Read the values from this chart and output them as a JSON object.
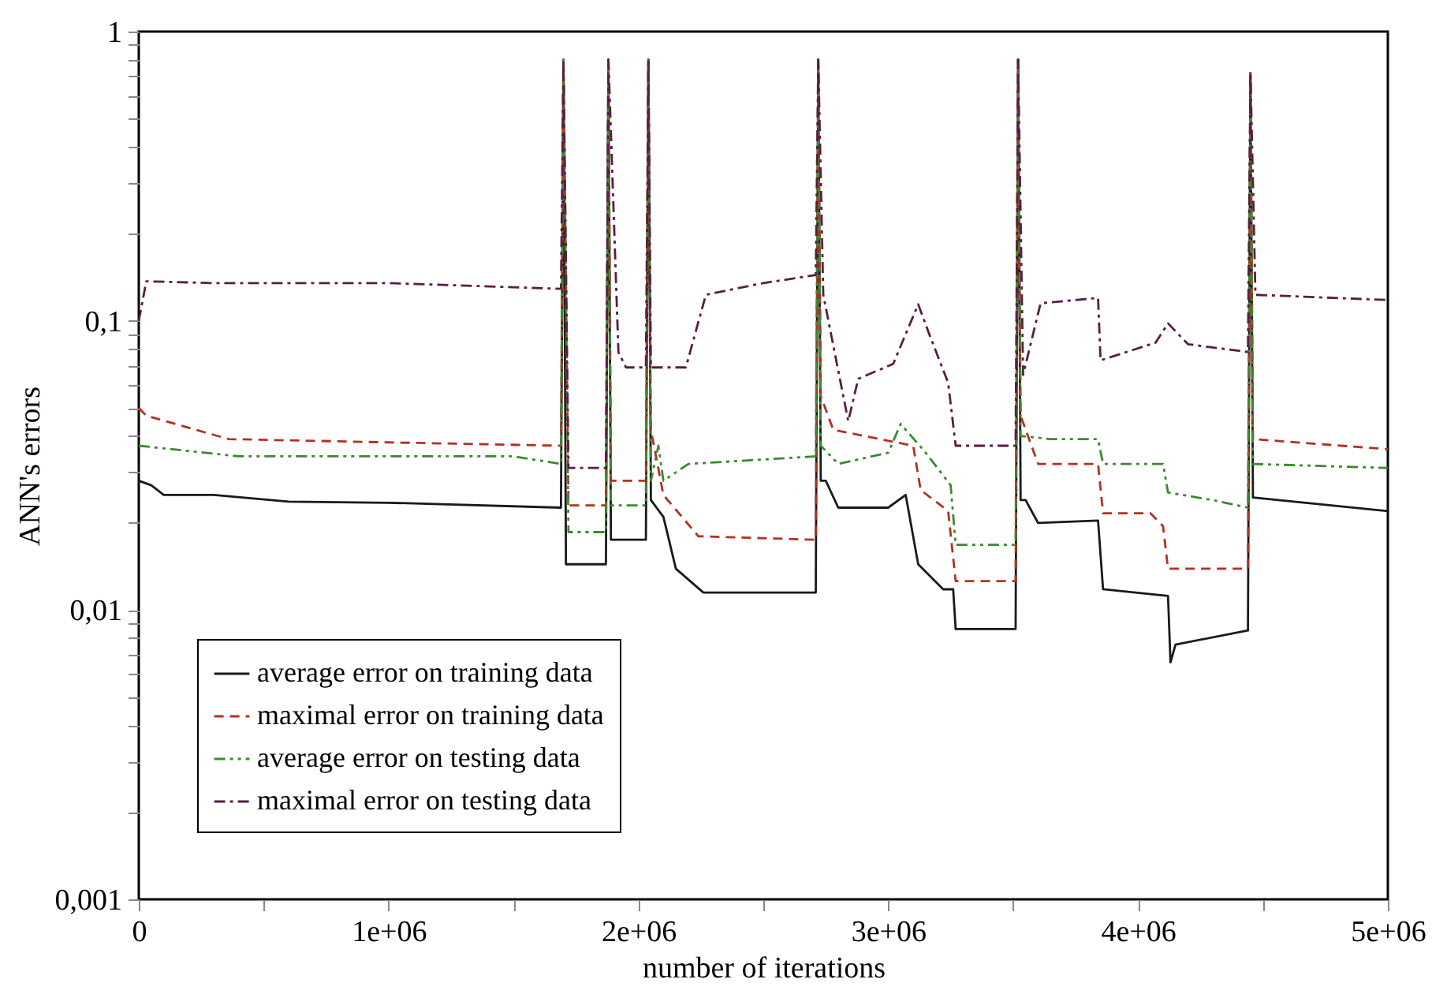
{
  "chart_data": {
    "type": "line",
    "xlabel": "number of iterations",
    "ylabel": "ANN's errors",
    "log": "y",
    "legend": "bottom left",
    "xlim": [
      0,
      5000000
    ],
    "xticks": [
      {
        "value": 0,
        "label": "0"
      },
      {
        "value": 500000,
        "label": null
      },
      {
        "value": 1000000,
        "label": "1e+06"
      },
      {
        "value": 1500000,
        "label": null
      },
      {
        "value": 2000000,
        "label": "2e+06"
      },
      {
        "value": 2500000,
        "label": null
      },
      {
        "value": 3000000,
        "label": "3e+06"
      },
      {
        "value": 3500000,
        "label": null
      },
      {
        "value": 4000000,
        "label": "4e+06"
      },
      {
        "value": 4500000,
        "label": null
      },
      {
        "value": 5000000,
        "label": "5e+06"
      }
    ],
    "ylim": [
      0.001,
      1
    ],
    "yticks": [
      {
        "value": 0.001,
        "label": "0,001"
      },
      {
        "value": 0.002,
        "label": null
      },
      {
        "value": 0.003,
        "label": null
      },
      {
        "value": 0.004,
        "label": null
      },
      {
        "value": 0.005,
        "label": null
      },
      {
        "value": 0.006,
        "label": null
      },
      {
        "value": 0.007,
        "label": null
      },
      {
        "value": 0.008,
        "label": null
      },
      {
        "value": 0.009,
        "label": null
      },
      {
        "value": 0.01,
        "label": "0,01"
      },
      {
        "value": 0.02,
        "label": null
      },
      {
        "value": 0.03,
        "label": null
      },
      {
        "value": 0.04,
        "label": null
      },
      {
        "value": 0.05,
        "label": null
      },
      {
        "value": 0.06,
        "label": null
      },
      {
        "value": 0.07,
        "label": null
      },
      {
        "value": 0.08,
        "label": null
      },
      {
        "value": 0.09,
        "label": null
      },
      {
        "value": 0.1,
        "label": "0,1"
      },
      {
        "value": 0.2,
        "label": null
      },
      {
        "value": 0.3,
        "label": null
      },
      {
        "value": 0.4,
        "label": null
      },
      {
        "value": 0.5,
        "label": null
      },
      {
        "value": 0.6,
        "label": null
      },
      {
        "value": 0.7,
        "label": null
      },
      {
        "value": 0.8,
        "label": null
      },
      {
        "value": 0.9,
        "label": null
      },
      {
        "value": 1,
        "label": "1"
      }
    ],
    "series": [
      {
        "name": "average error on training data",
        "color": "#1a1a1a",
        "line_style": "solid",
        "x": [
          0,
          50000,
          100000,
          300000,
          600000,
          1000000,
          1690000,
          1700000,
          1710000,
          1870000,
          1880000,
          1890000,
          2030000,
          2040000,
          2050000,
          2100000,
          2150000,
          2260000,
          2710000,
          2720000,
          2730000,
          2750000,
          2800000,
          3000000,
          3070000,
          3120000,
          3220000,
          3260000,
          3270000,
          3510000,
          3520000,
          3530000,
          3550000,
          3600000,
          3840000,
          3860000,
          4120000,
          4130000,
          4150000,
          4440000,
          4450000,
          4460000,
          5000000
        ],
        "values": [
          0.028,
          0.027,
          0.025,
          0.025,
          0.0237,
          0.0235,
          0.0226,
          0.8,
          0.0144,
          0.0144,
          0.8,
          0.0175,
          0.0175,
          0.8,
          0.024,
          0.021,
          0.0139,
          0.0115,
          0.0115,
          0.8,
          0.028,
          0.028,
          0.0226,
          0.0226,
          0.025,
          0.0144,
          0.0118,
          0.0118,
          0.0086,
          0.0086,
          0.8,
          0.024,
          0.024,
          0.02,
          0.0204,
          0.0118,
          0.0112,
          0.0066,
          0.0076,
          0.0085,
          0.72,
          0.0245,
          0.022
        ]
      },
      {
        "name": "maximal error on training data",
        "color": "#b5301f",
        "line_style": "dashed",
        "x": [
          0,
          30000,
          360000,
          1000000,
          1690000,
          1700000,
          1720000,
          1870000,
          1880000,
          1890000,
          2030000,
          2040000,
          2050000,
          2100000,
          2240000,
          2710000,
          2720000,
          2730000,
          2780000,
          3100000,
          3130000,
          3240000,
          3270000,
          3510000,
          3520000,
          3530000,
          3600000,
          3840000,
          3860000,
          4050000,
          4100000,
          4120000,
          4440000,
          4450000,
          4460000,
          5000000
        ],
        "values": [
          0.05,
          0.047,
          0.039,
          0.038,
          0.037,
          0.8,
          0.023,
          0.023,
          0.8,
          0.028,
          0.028,
          0.8,
          0.042,
          0.025,
          0.018,
          0.0175,
          0.8,
          0.055,
          0.042,
          0.037,
          0.026,
          0.022,
          0.0126,
          0.0126,
          0.8,
          0.047,
          0.032,
          0.032,
          0.0216,
          0.0216,
          0.0195,
          0.0139,
          0.0139,
          0.72,
          0.039,
          0.036
        ]
      },
      {
        "name": "average error on testing data",
        "color": "#3a8a2e",
        "line_style": "dashdotdot",
        "x": [
          0,
          400000,
          1000000,
          1500000,
          1690000,
          1700000,
          1720000,
          1870000,
          1880000,
          1890000,
          2030000,
          2040000,
          2050000,
          2080000,
          2100000,
          2200000,
          2710000,
          2720000,
          2730000,
          2800000,
          3000000,
          3050000,
          3150000,
          3250000,
          3270000,
          3510000,
          3520000,
          3530000,
          3650000,
          3840000,
          3860000,
          4100000,
          4120000,
          4300000,
          4440000,
          4450000,
          4460000,
          5000000
        ],
        "values": [
          0.037,
          0.034,
          0.034,
          0.034,
          0.032,
          0.8,
          0.0186,
          0.0186,
          0.8,
          0.023,
          0.023,
          0.8,
          0.028,
          0.037,
          0.028,
          0.032,
          0.034,
          0.8,
          0.037,
          0.032,
          0.035,
          0.044,
          0.035,
          0.027,
          0.0168,
          0.0168,
          0.8,
          0.04,
          0.039,
          0.039,
          0.032,
          0.032,
          0.0255,
          0.024,
          0.0226,
          0.72,
          0.032,
          0.031
        ]
      },
      {
        "name": "maximal error on testing data",
        "color": "#5a1d45",
        "line_style": "dashdot",
        "x": [
          0,
          30000,
          300000,
          1000000,
          1690000,
          1700000,
          1720000,
          1870000,
          1880000,
          1920000,
          1950000,
          2030000,
          2040000,
          2050000,
          2190000,
          2270000,
          2500000,
          2710000,
          2720000,
          2740000,
          2840000,
          2880000,
          3020000,
          3120000,
          3160000,
          3240000,
          3270000,
          3510000,
          3520000,
          3540000,
          3610000,
          3840000,
          3850000,
          4070000,
          4120000,
          4200000,
          4440000,
          4450000,
          4470000,
          5000000
        ],
        "values": [
          0.1,
          0.137,
          0.135,
          0.135,
          0.129,
          0.8,
          0.031,
          0.031,
          0.8,
          0.078,
          0.069,
          0.069,
          0.8,
          0.069,
          0.069,
          0.123,
          0.135,
          0.144,
          0.8,
          0.123,
          0.045,
          0.063,
          0.071,
          0.114,
          0.092,
          0.061,
          0.037,
          0.037,
          0.8,
          0.065,
          0.115,
          0.12,
          0.073,
          0.084,
          0.098,
          0.083,
          0.078,
          0.72,
          0.123,
          0.118
        ]
      }
    ]
  }
}
